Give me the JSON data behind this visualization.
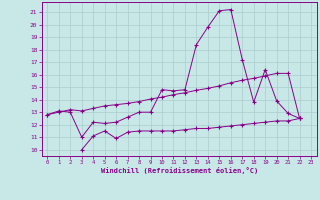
{
  "bg_color": "#c8e8e8",
  "grid_color": "#aacccc",
  "line_color": "#880088",
  "xlabel": "Windchill (Refroidissement éolien,°C)",
  "xlim": [
    -0.5,
    23.5
  ],
  "ylim": [
    9.5,
    21.8
  ],
  "yticks": [
    10,
    11,
    12,
    13,
    14,
    15,
    16,
    17,
    18,
    19,
    20,
    21
  ],
  "xticks": [
    0,
    1,
    2,
    3,
    4,
    5,
    6,
    7,
    8,
    9,
    10,
    11,
    12,
    13,
    14,
    15,
    16,
    17,
    18,
    19,
    20,
    21,
    22,
    23
  ],
  "line1_y": [
    12.8,
    13.1,
    13.0,
    11.0,
    12.2,
    12.1,
    12.2,
    12.6,
    13.0,
    13.0,
    14.8,
    14.7,
    14.8,
    18.4,
    19.8,
    21.1,
    21.2,
    17.2,
    13.8,
    16.4,
    13.9,
    12.9,
    12.5,
    null
  ],
  "line2_y": [
    12.8,
    13.0,
    13.2,
    13.1,
    13.3,
    13.5,
    13.6,
    13.7,
    13.85,
    14.05,
    14.2,
    14.4,
    14.55,
    14.75,
    14.9,
    15.1,
    15.35,
    15.55,
    15.7,
    15.9,
    16.1,
    16.1,
    12.5,
    null
  ],
  "line3_y": [
    null,
    null,
    null,
    10.0,
    11.1,
    11.5,
    10.9,
    11.4,
    11.5,
    11.5,
    11.5,
    11.5,
    11.6,
    11.7,
    11.7,
    11.8,
    11.9,
    12.0,
    12.1,
    12.2,
    12.3,
    12.3,
    12.5,
    null
  ]
}
